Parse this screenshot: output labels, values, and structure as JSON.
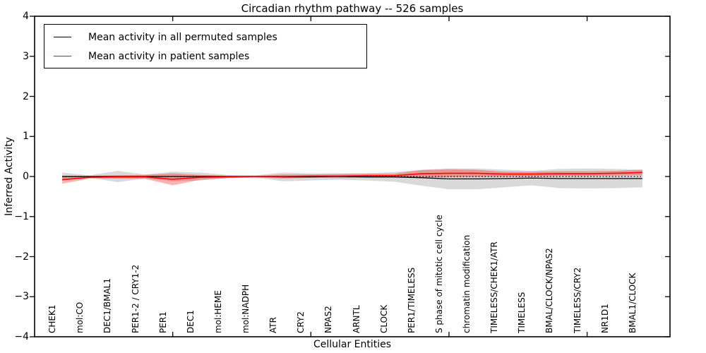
{
  "chart_data": {
    "type": "line",
    "title": "Circadian rhythm pathway -- 526 samples",
    "xlabel": "Cellular Entities",
    "ylabel": "Inferred Activity",
    "ylim": [
      -4,
      4
    ],
    "yticks": [
      4,
      3,
      2,
      1,
      0,
      -1,
      -2,
      -3,
      -4
    ],
    "ytick_labels": [
      "4",
      "3",
      "2",
      "1",
      "0",
      "−1",
      "−2",
      "−3",
      "−4"
    ],
    "xlim": [
      0,
      23
    ],
    "xticks_major": [
      5,
      10,
      15,
      20
    ],
    "grid": false,
    "legend_position": "upper left",
    "zero_reference_line": {
      "y": 0,
      "style": "dotted",
      "color": "#000000"
    },
    "categories": [
      "CHEK1",
      "mol:CO",
      "DEC1/BMAL1",
      "PER1-2 / CRY1-2",
      "PER1",
      "DEC1",
      "mol:HEME",
      "mol:NADPH",
      "ATR",
      "CRY2",
      "NPAS2",
      "ARNTL",
      "CLOCK",
      "PER1/TIMELESS",
      "S phase of mitotic cell cycle",
      "chromatin modification",
      "TIMELESS/CHEK1/ATR",
      "TIMELESS",
      "BMAL/CLOCK/NPAS2",
      "TIMELESS/CRY2",
      "NR1D1",
      "BMAL1/CLOCK"
    ],
    "series": [
      {
        "name": "Mean activity in all permuted samples",
        "color": "#000000",
        "band_color": "rgba(0,0,0,0.15)",
        "values": [
          0,
          0,
          0,
          0,
          0,
          0,
          0,
          0,
          -0.01,
          -0.01,
          0,
          -0.01,
          -0.01,
          -0.03,
          -0.06,
          -0.06,
          -0.05,
          -0.04,
          -0.05,
          -0.05,
          -0.05,
          -0.05
        ],
        "std": [
          0.1,
          0.03,
          0.14,
          0.05,
          0.12,
          0.1,
          0.04,
          0.03,
          0.11,
          0.09,
          0.08,
          0.09,
          0.12,
          0.2,
          0.26,
          0.26,
          0.22,
          0.18,
          0.24,
          0.25,
          0.24,
          0.22
        ]
      },
      {
        "name": "Mean activity in patient samples",
        "color": "#ff0000",
        "band_color": "rgba(255,0,0,0.30)",
        "values": [
          -0.08,
          -0.02,
          -0.01,
          -0.01,
          -0.07,
          -0.02,
          -0.01,
          0,
          0,
          0.01,
          0.01,
          0.02,
          0.02,
          0.07,
          0.08,
          0.08,
          0.06,
          0.06,
          0.07,
          0.07,
          0.08,
          0.1
        ],
        "std": [
          0.1,
          0.03,
          0.04,
          0.05,
          0.15,
          0.06,
          0.03,
          0.02,
          0.05,
          0.04,
          0.05,
          0.05,
          0.05,
          0.09,
          0.1,
          0.09,
          0.06,
          0.06,
          0.06,
          0.06,
          0.06,
          0.07
        ]
      }
    ]
  }
}
